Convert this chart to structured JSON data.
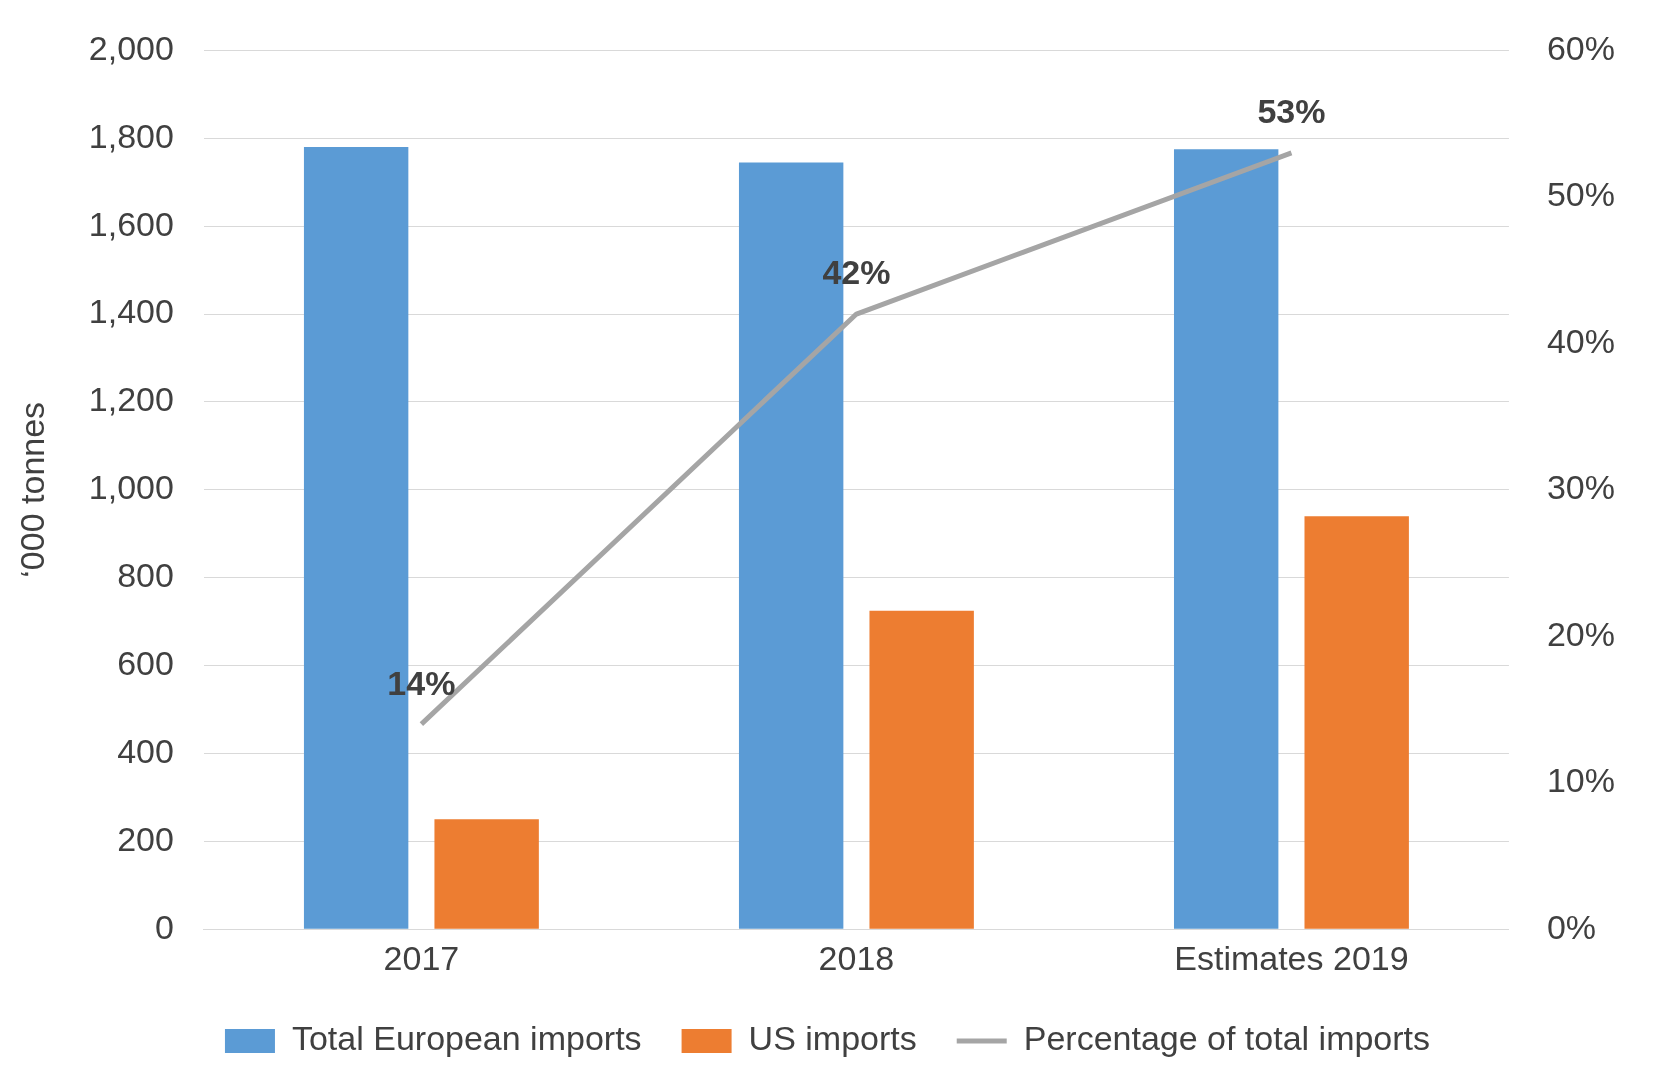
{
  "chart_data": {
    "type": "bar",
    "categories": [
      "2017",
      "2018",
      "Estimates 2019"
    ],
    "ylabel": "‘000 tonnes",
    "series": [
      {
        "name": "Total European imports",
        "color": "#5b9bd5",
        "values": [
          1780,
          1745,
          1775
        ]
      },
      {
        "name": "US imports",
        "color": "#ed7d31",
        "values": [
          250,
          725,
          940
        ]
      },
      {
        "name": "Percentage of total imports",
        "type": "line",
        "axis": "y2",
        "color": "#a5a5a5",
        "values": [
          14,
          42,
          53
        ],
        "value_labels": [
          "14%",
          "42%",
          "53%"
        ]
      }
    ],
    "ylim": [
      0,
      2000
    ],
    "yticks": [
      {
        "value": 0,
        "label": "0"
      },
      {
        "value": 200,
        "label": "200"
      },
      {
        "value": 400,
        "label": "400"
      },
      {
        "value": 600,
        "label": "600"
      },
      {
        "value": 800,
        "label": "800"
      },
      {
        "value": 1000,
        "label": "1,000"
      },
      {
        "value": 1200,
        "label": "1,200"
      },
      {
        "value": 1400,
        "label": "1,400"
      },
      {
        "value": 1600,
        "label": "1,600"
      },
      {
        "value": 1800,
        "label": "1,800"
      },
      {
        "value": 2000,
        "label": "2,000"
      }
    ],
    "y2lim": [
      0,
      60
    ],
    "y2ticks": [
      {
        "value": 0,
        "label": "0%"
      },
      {
        "value": 10,
        "label": "10%"
      },
      {
        "value": 20,
        "label": "20%"
      },
      {
        "value": 30,
        "label": "30%"
      },
      {
        "value": 40,
        "label": "40%"
      },
      {
        "value": 50,
        "label": "50%"
      },
      {
        "value": 60,
        "label": "60%"
      }
    ],
    "grid": "y",
    "legend": "bottom",
    "marker": "none"
  }
}
